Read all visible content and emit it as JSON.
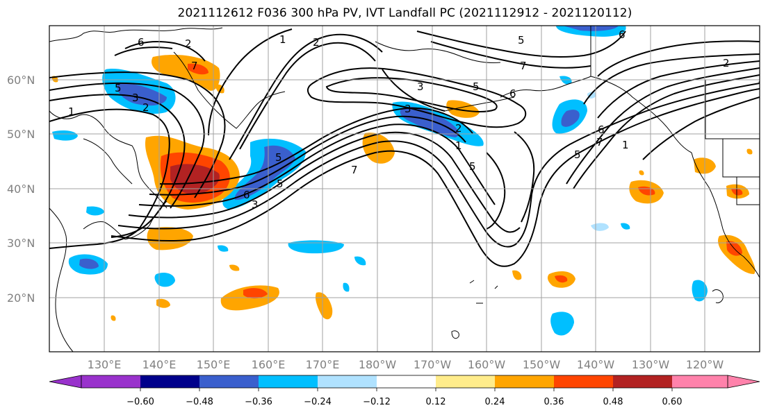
{
  "title": "2021112612 F036 300 hPa PV, IVT Landfall PC (2021112912 - 2021120112)",
  "lat_labels": [
    "60°N",
    "50°N",
    "40°N",
    "30°N",
    "20°N"
  ],
  "lon_labels": [
    "130°E",
    "140°E",
    "150°E",
    "160°E",
    "170°E",
    "180°W",
    "170°W",
    "160°W",
    "150°W",
    "140°W",
    "130°W",
    "120°W"
  ],
  "colorbar": {
    "ticks": [
      "−0.60",
      "−0.48",
      "−0.36",
      "−0.24",
      "−0.12",
      "0.12",
      "0.24",
      "0.36",
      "0.48",
      "0.60"
    ],
    "colors": [
      "#9932cc",
      "#00008b",
      "#3a5fcd",
      "#00bfff",
      "#b0e2ff",
      "#ffffff",
      "#ffec8b",
      "#ffa500",
      "#ff4500",
      "#b22222",
      "#ff82ab"
    ]
  },
  "contour_labels": [
    "1",
    "2",
    "3",
    "5",
    "6",
    "7",
    "2",
    "1",
    "5",
    "3",
    "7",
    "6",
    "5",
    "3",
    "2",
    "1",
    "5",
    "6",
    "7",
    "1",
    "2",
    "6",
    "5",
    "3",
    "5",
    "6",
    "7",
    "5",
    "1",
    "2"
  ]
}
